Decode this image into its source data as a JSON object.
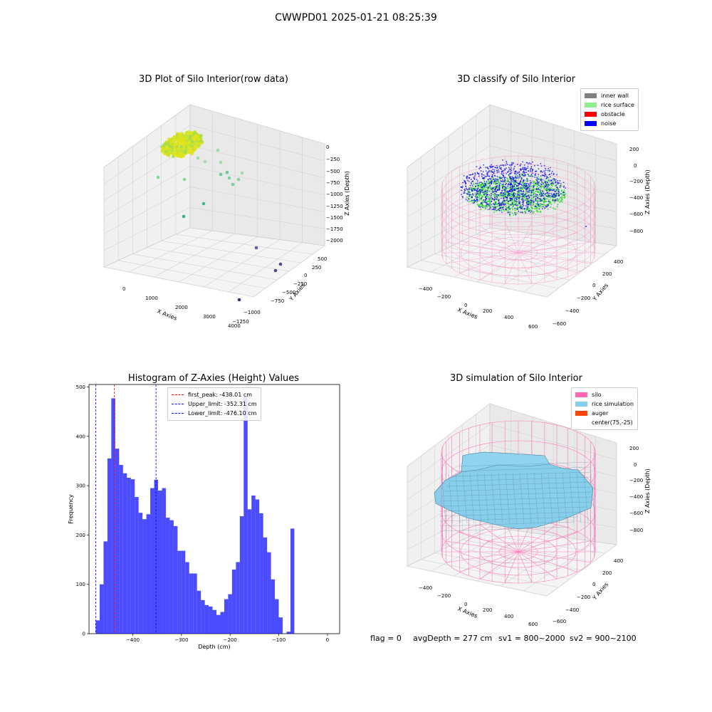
{
  "figure": {
    "title": "CWWPD01 2025-01-21 08:25:39"
  },
  "panels": {
    "raw": {
      "title": "3D Plot of Silo Interior(row data)",
      "xlabel": "X Axies",
      "ylabel": "Y Axies",
      "zlabel": "Z Axies (Depth)",
      "xticks": [
        "0",
        "1000",
        "2000",
        "3000",
        "4000"
      ],
      "yticks": [
        "500",
        "250",
        "0",
        "−250",
        "−500",
        "−750",
        "−1000",
        "−1250"
      ],
      "zticks": [
        "0",
        "−250",
        "−500",
        "−750",
        "−1000",
        "−1250",
        "−1500",
        "−1750",
        "−2000"
      ]
    },
    "classify": {
      "title": "3D classify of Silo Interior",
      "xlabel": "X Axies",
      "ylabel": "Y Axies",
      "zlabel": "Z Axies (Depth)",
      "xticks": [
        "−400",
        "−200",
        "0",
        "200",
        "400",
        "600"
      ],
      "yticks": [
        "400",
        "200",
        "0",
        "−200",
        "−400",
        "−600"
      ],
      "zticks": [
        "200",
        "0",
        "−200",
        "−400",
        "−600",
        "−800"
      ],
      "legend": [
        {
          "label": "inner wall",
          "color": "#808080"
        },
        {
          "label": "rice surface",
          "color": "#90ee90"
        },
        {
          "label": "obstacle",
          "color": "#ff0000"
        },
        {
          "label": "noise",
          "color": "#0000ff"
        }
      ]
    },
    "simulation": {
      "title": "3D simulation of Silo Interior",
      "xlabel": "X Axies",
      "ylabel": "Y Axies",
      "zlabel": "Z Axies (Depth)",
      "xticks": [
        "−400",
        "−200",
        "0",
        "200",
        "400",
        "600"
      ],
      "yticks": [
        "400",
        "200",
        "0",
        "−200",
        "−400",
        "−600"
      ],
      "zticks": [
        "200",
        "0",
        "−200",
        "−400",
        "−600",
        "−800"
      ],
      "legend": [
        {
          "label": "silo",
          "color": "#ff69b4"
        },
        {
          "label": "rice simulation",
          "color": "#87ceeb"
        },
        {
          "label": "auger",
          "color": "#ff4500"
        },
        {
          "label": "center(75,-25)",
          "color": "#ffffff"
        }
      ]
    }
  },
  "footer": {
    "flag": "flag = 0",
    "avg": "avgDepth = 277 cm",
    "sv1": "sv1 = 800~2000",
    "sv2": "sv2 = 900~2100"
  },
  "chart_data": [
    {
      "type": "scatter",
      "title": "3D Plot of Silo Interior(row data)",
      "xlabel": "X Axies",
      "ylabel": "Y Axies",
      "zlabel": "Z Axies (Depth)",
      "xlim": [
        -500,
        4200
      ],
      "ylim": [
        -1300,
        650
      ],
      "zlim": [
        -2050,
        100
      ],
      "grid": true
    },
    {
      "type": "scatter",
      "title": "3D classify of Silo Interior",
      "xlabel": "X Axies",
      "ylabel": "Y Axies",
      "zlabel": "Z Axies (Depth)",
      "xlim": [
        -500,
        650
      ],
      "ylim": [
        -650,
        450
      ],
      "zlim": [
        -900,
        300
      ],
      "legend_position": "top-right",
      "series": [
        {
          "name": "inner wall",
          "color": "#808080"
        },
        {
          "name": "rice surface",
          "color": "#90ee90"
        },
        {
          "name": "obstacle",
          "color": "#ff0000"
        },
        {
          "name": "noise",
          "color": "#0000ff"
        }
      ],
      "grid": true
    },
    {
      "type": "bar",
      "title": "Histogram of Z-Axies (Height) Values",
      "xlabel": "Depth (cm)",
      "ylabel": "Frequency",
      "xlim": [
        -490,
        25
      ],
      "ylim": [
        0,
        505
      ],
      "xticks": [
        -400,
        -300,
        -200,
        -100,
        0
      ],
      "yticks": [
        0,
        100,
        200,
        300,
        400,
        500
      ],
      "bin_start": -476.1,
      "bin_width": 8.0,
      "values": [
        27,
        100,
        187,
        355,
        477,
        375,
        342,
        325,
        316,
        313,
        277,
        245,
        232,
        242,
        295,
        312,
        290,
        295,
        235,
        230,
        218,
        168,
        168,
        145,
        122,
        122,
        87,
        68,
        58,
        55,
        48,
        38,
        44,
        70,
        80,
        130,
        145,
        238,
        480,
        252,
        280,
        272,
        244,
        195,
        165,
        110,
        70,
        33,
        0,
        4,
        213
      ],
      "color": "#0000ff",
      "lines": [
        {
          "label": "first_peak: -438.01 cm",
          "x": -438.01,
          "color": "#ff0000"
        },
        {
          "label": "Upper_limit: -352.31 cm",
          "x": -352.31,
          "color": "#0000ff"
        },
        {
          "label": "Lower_limit: -476.10 cm",
          "x": -476.1,
          "color": "#0000ff"
        }
      ],
      "legend_position": "top-center"
    },
    {
      "type": "surface",
      "title": "3D simulation of Silo Interior",
      "xlabel": "X Axies",
      "ylabel": "Y Axies",
      "zlabel": "Z Axies (Depth)",
      "xlim": [
        -500,
        650
      ],
      "ylim": [
        -650,
        450
      ],
      "zlim": [
        -900,
        300
      ],
      "legend_position": "top-right",
      "series": [
        {
          "name": "silo",
          "color": "#ff69b4"
        },
        {
          "name": "rice simulation",
          "color": "#87ceeb"
        },
        {
          "name": "auger",
          "color": "#ff4500"
        },
        {
          "name": "center(75,-25)",
          "color": "#ffffff"
        }
      ]
    }
  ]
}
